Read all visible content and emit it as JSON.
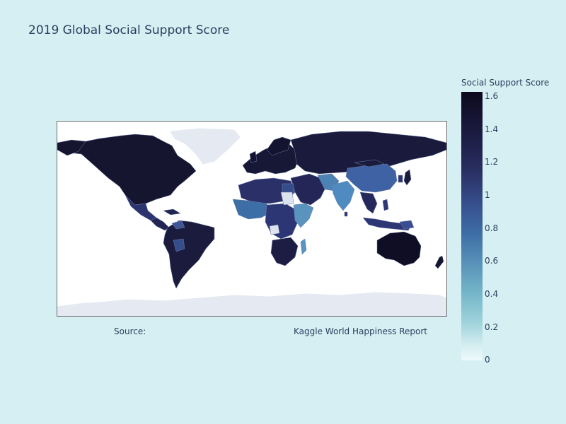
{
  "title": "2019 Global Social Support Score",
  "source_label": "Source:",
  "source_value": "Kaggle World Happiness Report",
  "colorbar": {
    "title": "Social Support Score",
    "ticks": [
      "1.6",
      "1.4",
      "1.2",
      "1",
      "0.8",
      "0.6",
      "0.4",
      "0.2",
      "0"
    ],
    "range": [
      0,
      1.6
    ]
  },
  "colors": {
    "background": "#d5eff2",
    "land_no_data": "#e4e9f2",
    "ocean": "#ffffff",
    "text": "#2a3f5f"
  },
  "regions": [
    {
      "region": "North America",
      "score": 1.5
    },
    {
      "region": "Greenland",
      "score": null
    },
    {
      "region": "Mexico",
      "score": 1.2
    },
    {
      "region": "Central America",
      "score": 1.3
    },
    {
      "region": "South America",
      "score": 1.45
    },
    {
      "region": "Europe",
      "score": 1.5
    },
    {
      "region": "Russia",
      "score": 1.45
    },
    {
      "region": "Middle East",
      "score": 1.3
    },
    {
      "region": "North Africa",
      "score": 1.1
    },
    {
      "region": "West Africa",
      "score": 0.9
    },
    {
      "region": "Central Africa",
      "score": 1.0
    },
    {
      "region": "East Africa",
      "score": 0.8
    },
    {
      "region": "Southern Africa",
      "score": 1.3
    },
    {
      "region": "Madagascar",
      "score": 0.8
    },
    {
      "region": "Central Asia",
      "score": 1.4
    },
    {
      "region": "South Asia",
      "score": 0.7
    },
    {
      "region": "China",
      "score": 1.05
    },
    {
      "region": "Southeast Asia",
      "score": 1.2
    },
    {
      "region": "Indonesia",
      "score": 1.2
    },
    {
      "region": "Australia",
      "score": 1.55
    },
    {
      "region": "New Zealand",
      "score": 1.55
    },
    {
      "region": "Japan",
      "score": 1.4
    },
    {
      "region": "Antarctica",
      "score": null
    }
  ]
}
